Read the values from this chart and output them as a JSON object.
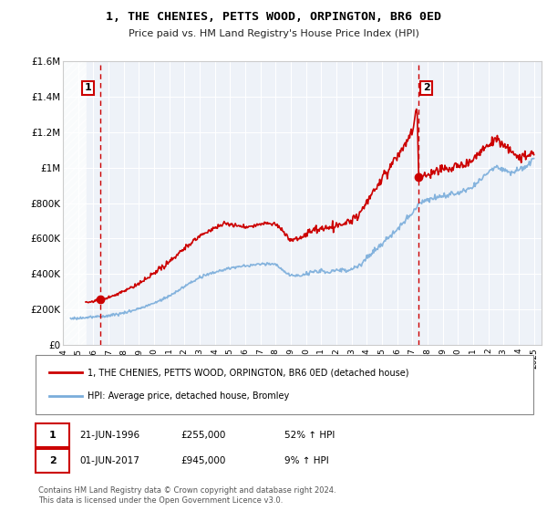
{
  "title": "1, THE CHENIES, PETTS WOOD, ORPINGTON, BR6 0ED",
  "subtitle": "Price paid vs. HM Land Registry's House Price Index (HPI)",
  "legend_line1": "1, THE CHENIES, PETTS WOOD, ORPINGTON, BR6 0ED (detached house)",
  "legend_line2": "HPI: Average price, detached house, Bromley",
  "sale1_date": "21-JUN-1996",
  "sale1_price": 255000,
  "sale1_pct": "52% ↑ HPI",
  "sale2_date": "01-JUN-2017",
  "sale2_price": 945000,
  "sale2_pct": "9% ↑ HPI",
  "footnote": "Contains HM Land Registry data © Crown copyright and database right 2024.\nThis data is licensed under the Open Government Licence v3.0.",
  "xmin": 1994.0,
  "xmax": 2025.5,
  "ymin": 0,
  "ymax": 1600000,
  "hatch_end": 1995.5,
  "sale1_x": 1996.47,
  "sale2_x": 2017.42,
  "red_color": "#cc0000",
  "blue_color": "#7aaddb",
  "dashed_color": "#cc0000",
  "background_color": "#eef2f8"
}
